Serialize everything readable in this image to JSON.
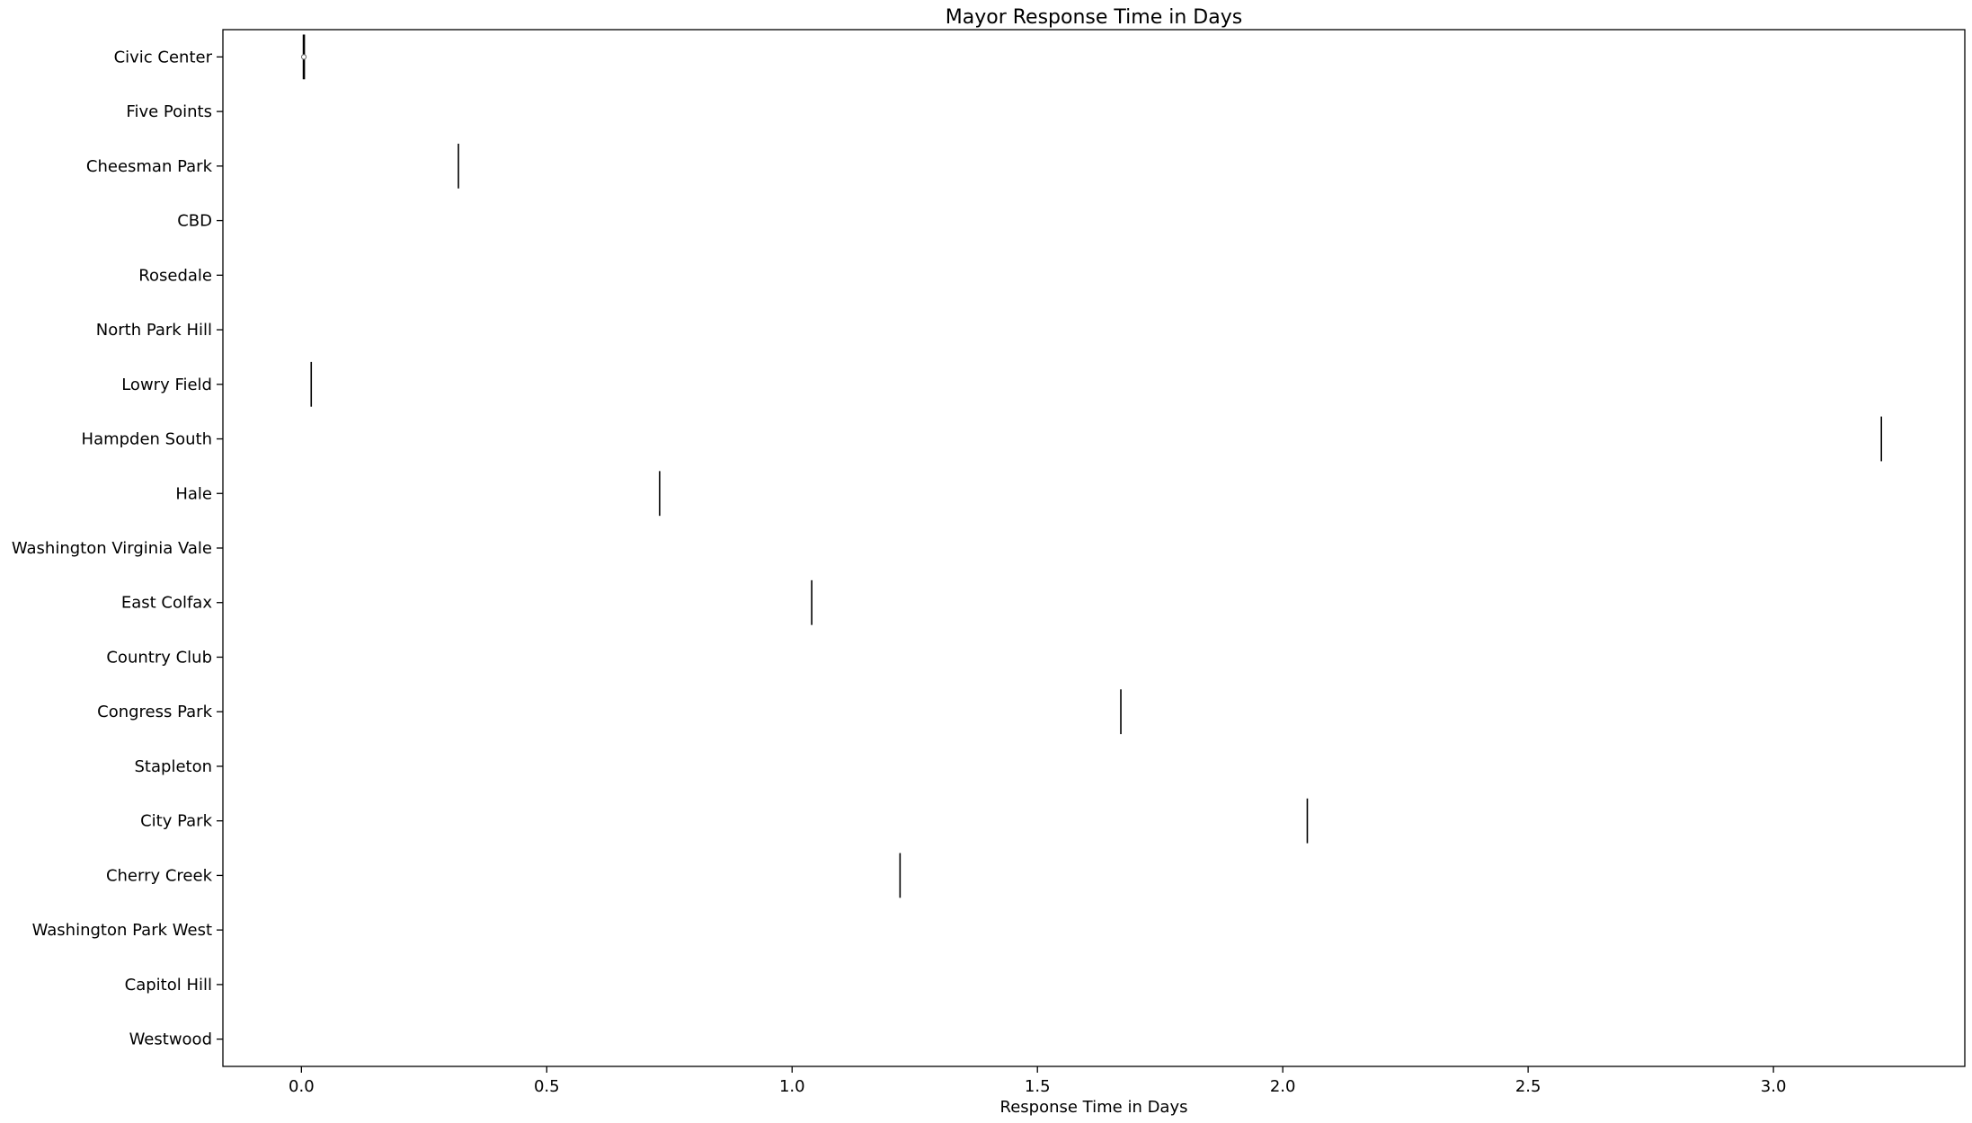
{
  "chart_data": {
    "type": "violin",
    "title": "Mayor Response Time in Days",
    "xlabel": "Response Time in Days",
    "ylabel": "",
    "xlim": [
      -0.16,
      3.39
    ],
    "xticks": [
      0.0,
      0.5,
      1.0,
      1.5,
      2.0,
      2.5,
      3.0
    ],
    "xtick_labels": [
      "0.0",
      "0.5",
      "1.0",
      "1.5",
      "2.0",
      "2.5",
      "3.0"
    ],
    "categories": [
      "Civic Center",
      "Five Points",
      "Cheesman Park",
      "CBD",
      "Rosedale",
      "North Park Hill",
      "Lowry Field",
      "Hampden South",
      "Hale",
      "Washington Virginia Vale",
      "East Colfax",
      "Country Club",
      "Congress Park",
      "Stapleton",
      "City Park",
      "Cherry Creek",
      "Washington Park West",
      "Capitol Hill",
      "Westwood"
    ],
    "values": [
      0.005,
      null,
      0.32,
      null,
      null,
      null,
      0.02,
      3.22,
      0.73,
      null,
      1.04,
      null,
      1.67,
      null,
      2.05,
      1.22,
      null,
      null,
      null
    ],
    "median_marker": {
      "category": "Civic Center",
      "value": 0.005
    },
    "grid": false,
    "legend": "none",
    "colors": {
      "mark": "#000000",
      "axes": "#000000",
      "background": "#ffffff"
    }
  }
}
